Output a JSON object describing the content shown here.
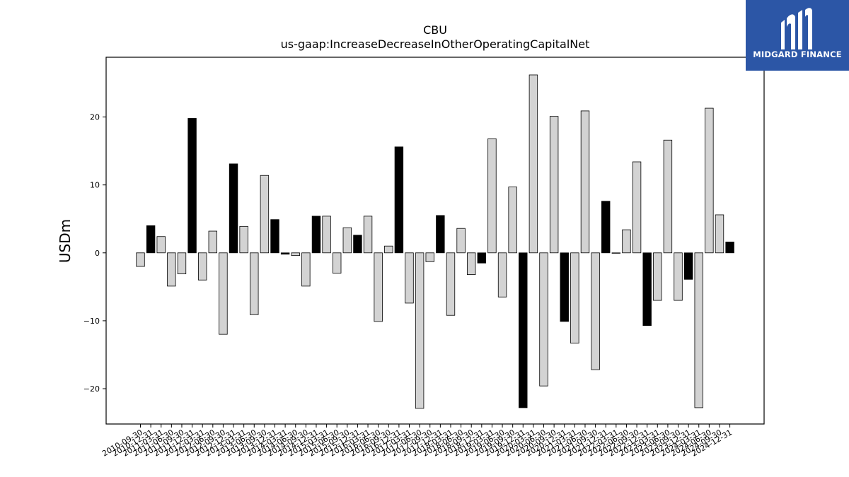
{
  "chart_data": {
    "type": "bar",
    "title": "CBU",
    "subtitle": "us-gaap:IncreaseDecreaseInOtherOperatingCapitalNet",
    "xlabel": "",
    "ylabel": "USDm",
    "ylim": [
      -25.2,
      28.8
    ],
    "yticks": [
      -20,
      -10,
      0,
      10,
      20
    ],
    "grid": false,
    "categories": [
      "2010-09-30",
      "2010-12-31",
      "2011-03-31",
      "2011-06-30",
      "2011-09-30",
      "2011-12-31",
      "2012-03-31",
      "2012-06-30",
      "2012-09-30",
      "2012-12-31",
      "2013-03-31",
      "2013-06-30",
      "2013-09-30",
      "2013-12-31",
      "2014-03-31",
      "2014-06-30",
      "2014-09-30",
      "2014-12-31",
      "2015-03-31",
      "2015-06-30",
      "2015-09-30",
      "2015-12-31",
      "2016-03-31",
      "2016-06-30",
      "2016-09-30",
      "2016-12-31",
      "2017-03-31",
      "2017-06-30",
      "2017-09-30",
      "2017-12-31",
      "2018-03-31",
      "2018-06-30",
      "2018-09-30",
      "2018-12-31",
      "2019-03-31",
      "2019-06-30",
      "2019-09-30",
      "2019-12-31",
      "2020-03-31",
      "2020-06-30",
      "2020-09-30",
      "2020-12-31",
      "2021-03-31",
      "2021-06-30",
      "2021-09-30",
      "2021-12-31",
      "2022-03-31",
      "2022-06-30",
      "2022-09-30",
      "2022-12-31",
      "2023-03-31",
      "2023-06-30",
      "2023-09-30",
      "2023-12-31",
      "2024-03-31",
      "2024-06-30",
      "2024-09-30",
      "2024-12-31"
    ],
    "values": [
      -2.0,
      4.0,
      2.4,
      -4.9,
      -3.1,
      19.8,
      -4.0,
      3.2,
      -12.0,
      13.1,
      3.9,
      -9.1,
      11.4,
      4.9,
      -0.2,
      -0.4,
      -4.9,
      5.4,
      5.4,
      -3.0,
      3.7,
      2.6,
      5.4,
      -10.1,
      1.0,
      15.6,
      -7.4,
      -22.9,
      -1.3,
      5.5,
      -9.2,
      3.6,
      -3.2,
      -1.5,
      16.8,
      -6.5,
      9.7,
      -22.8,
      26.2,
      -19.6,
      20.1,
      -10.1,
      -13.3,
      20.9,
      -17.2,
      7.6,
      0.0,
      3.4,
      13.4,
      -10.7,
      -7.0,
      16.6,
      -7.0,
      -3.9,
      -22.8,
      21.3,
      5.6,
      1.6
    ],
    "highlight": [
      false,
      true,
      false,
      false,
      false,
      true,
      false,
      false,
      false,
      true,
      false,
      false,
      false,
      true,
      true,
      false,
      false,
      true,
      false,
      false,
      false,
      true,
      false,
      false,
      false,
      true,
      false,
      false,
      false,
      true,
      false,
      false,
      false,
      true,
      false,
      false,
      false,
      true,
      false,
      false,
      false,
      true,
      false,
      false,
      false,
      true,
      true,
      false,
      false,
      true,
      false,
      false,
      false,
      true,
      false,
      false,
      false,
      true
    ],
    "colors": {
      "normal": "#d3d3d3",
      "highlight": "#000000",
      "edge": "#000000"
    }
  },
  "logo": {
    "text": "MIDGARD FINANCE",
    "background": "#2c56a6"
  }
}
